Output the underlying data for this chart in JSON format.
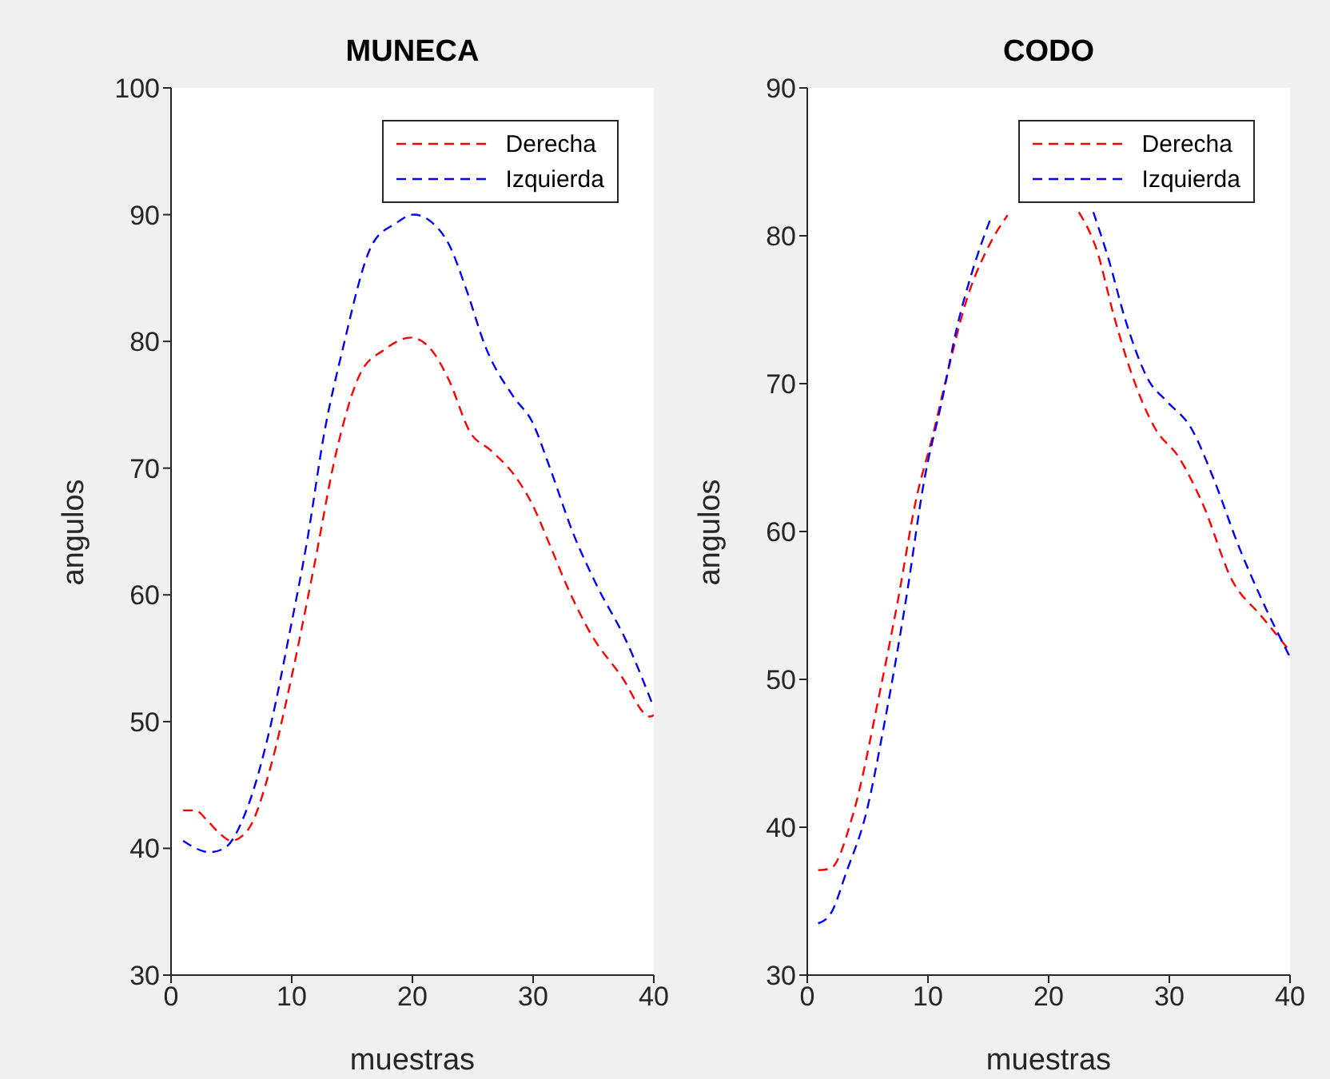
{
  "chart_data": [
    {
      "type": "line",
      "title": "MUNECA",
      "xlabel": "muestras",
      "ylabel": "angulos",
      "xlim": [
        0,
        40
      ],
      "xticks": [
        0,
        10,
        20,
        30,
        40
      ],
      "ylim": [
        30,
        100
      ],
      "yticks": [
        30,
        40,
        50,
        60,
        70,
        80,
        90,
        100
      ],
      "legend": "top right",
      "line_style": "dashed",
      "marker": "none",
      "series": [
        {
          "name": "Derecha",
          "color": "#ff0000",
          "x": [
            1,
            2,
            3,
            4,
            5,
            6.4,
            8.3,
            9.8,
            11.8,
            13.7,
            15.7,
            17.6,
            19.9,
            21.6,
            23,
            24.8,
            26.5,
            28.4,
            29.9,
            31.4,
            32.8,
            34.8,
            37.3,
            39.7,
            40
          ],
          "values": [
            43,
            43,
            42.2,
            41.2,
            40.6,
            41.5,
            46.6,
            52.7,
            62,
            71.3,
            77.5,
            79.3,
            80.3,
            79.3,
            77,
            72.8,
            71.4,
            69.5,
            67.2,
            63.9,
            60.7,
            56.9,
            53.6,
            50.4,
            50.5
          ]
        },
        {
          "name": "Izquierda",
          "color": "#0000ff",
          "x": [
            1,
            3.2,
            4.4,
            6.4,
            8.3,
            9.8,
            11.3,
            12.7,
            14.2,
            16.7,
            18.6,
            20.1,
            21.6,
            23,
            24.5,
            26,
            28.4,
            29.9,
            31.4,
            33.3,
            35.3,
            37.7,
            40
          ],
          "values": [
            40.6,
            39.7,
            40,
            43.4,
            49.9,
            56.9,
            64.4,
            72.8,
            79.3,
            87.7,
            89.3,
            90,
            89.4,
            87.7,
            84,
            79.7,
            75.6,
            73.7,
            70,
            64.9,
            60.7,
            56.4,
            51.1
          ]
        }
      ]
    },
    {
      "type": "line",
      "title": "CODO",
      "xlabel": "muestras",
      "ylabel": "angulos",
      "xlim": [
        0,
        40
      ],
      "xticks": [
        0,
        10,
        20,
        30,
        40
      ],
      "ylim": [
        30,
        90
      ],
      "yticks": [
        30,
        40,
        50,
        60,
        70,
        80,
        90
      ],
      "legend": "top right",
      "line_style": "dashed",
      "marker": "none",
      "series": [
        {
          "name": "Derecha",
          "color": "#ff0000",
          "x": [
            0.9,
            1.9,
            3.8,
            6,
            7.5,
            9,
            10.4,
            11.7,
            13.1,
            15.1,
            16.6,
            19,
            22.5,
            24,
            25.4,
            26.9,
            28.8,
            30.8,
            32.8,
            35.2,
            37.6,
            40
          ],
          "values": [
            37.1,
            37.2,
            40.9,
            49.1,
            55.3,
            62.1,
            66.5,
            71,
            75.4,
            79.4,
            81.4,
            null,
            81.6,
            79,
            74.6,
            70.6,
            67,
            65,
            61.8,
            56.7,
            54.3,
            51.9
          ]
        },
        {
          "name": "Izquierda",
          "color": "#0000ff",
          "x": [
            0.9,
            1.9,
            3.3,
            4.8,
            6.5,
            8.2,
            9.7,
            11.2,
            12.4,
            13.6,
            15.3,
            19,
            23.7,
            24.9,
            26.4,
            28.3,
            29.8,
            31.8,
            33.7,
            35.7,
            37.6,
            40
          ],
          "values": [
            33.5,
            34.1,
            37.1,
            40.7,
            47.5,
            55.5,
            63.5,
            69,
            73.8,
            77.4,
            81.4,
            null,
            81.6,
            78.6,
            74.2,
            70.2,
            68.8,
            67,
            63.5,
            59.1,
            55.5,
            51.5
          ]
        }
      ]
    }
  ]
}
